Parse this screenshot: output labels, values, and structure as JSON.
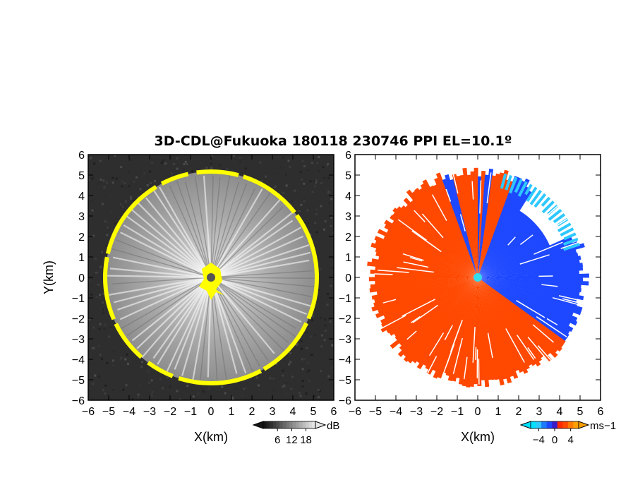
{
  "chart_data": [
    {
      "type": "heatmap",
      "title": "3D-CDL@Fukuoka 180118 230746 PPI EL=10.1º",
      "xlabel": "X(km)",
      "ylabel": "Y(km)",
      "xlim": [
        -6,
        6
      ],
      "ylim": [
        -6,
        6
      ],
      "x_ticks": [
        "−6",
        "−5",
        "−4",
        "−3",
        "−2",
        "−1",
        "0",
        "1",
        "2",
        "3",
        "4",
        "5",
        "6"
      ],
      "y_ticks": [
        "6",
        "5",
        "4",
        "3",
        "2",
        "1",
        "0",
        "−1",
        "−2",
        "−3",
        "−4",
        "−5",
        "−6"
      ],
      "colorbar": {
        "unit": "dB",
        "ticks": [
          "6",
          "12",
          "18"
        ],
        "tick_values": [
          6,
          12,
          18
        ],
        "range": [
          0,
          22
        ]
      },
      "features": {
        "echo_ring_radius_km": 5.2,
        "radar_center_km": [
          0,
          0
        ]
      },
      "colors": {
        "background": "#2e2e2e",
        "echo": "#bdbdbd",
        "edge": "#ffff00",
        "center": "#555555"
      }
    },
    {
      "type": "heatmap",
      "xlabel": "X(km)",
      "xlim": [
        -6,
        6
      ],
      "ylim": [
        -6,
        6
      ],
      "x_ticks": [
        "−6",
        "−5",
        "−4",
        "−3",
        "−2",
        "−1",
        "0",
        "1",
        "2",
        "3",
        "4",
        "5",
        "6"
      ],
      "y_ticks": [
        "6",
        "5",
        "4",
        "3",
        "2",
        "1",
        "0",
        "−1",
        "−2",
        "−3",
        "−4",
        "−5",
        "−6"
      ],
      "colorbar": {
        "unit": "ms−1",
        "ticks": [
          "−4",
          "0",
          "4"
        ],
        "tick_values": [
          -4,
          0,
          4
        ],
        "range": [
          -6,
          6
        ]
      },
      "features": {
        "echo_ring_radius_km": 5.3,
        "radar_center_km": [
          0,
          0
        ]
      },
      "colors": {
        "positive": "#ff4800",
        "negative": "#1e48ff",
        "strong_negative": "#2ec8ff",
        "center": "#33ddee"
      }
    }
  ]
}
